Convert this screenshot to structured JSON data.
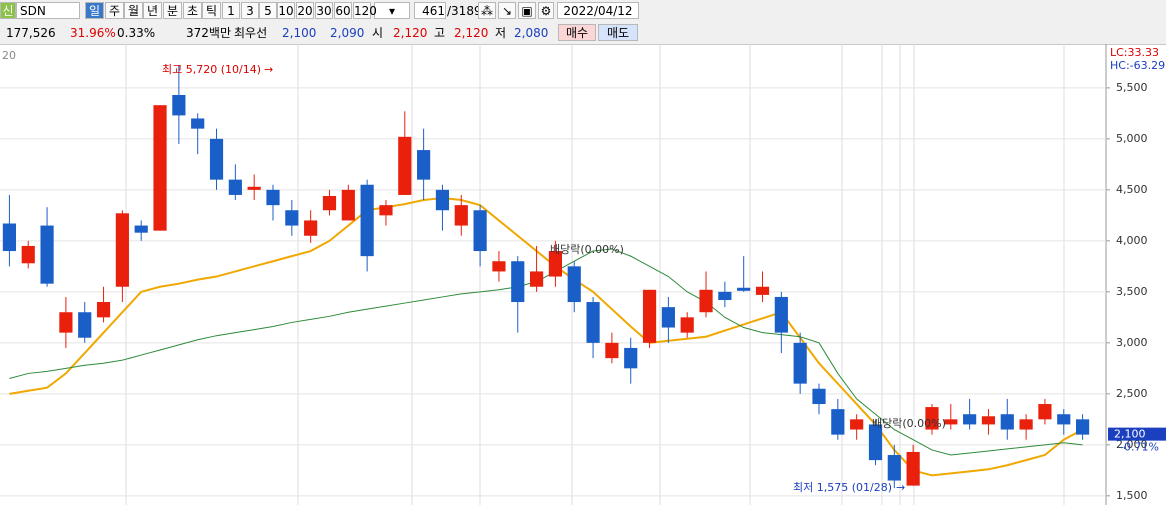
{
  "toolbar": {
    "badge": "신",
    "code": "SDN",
    "periods": [
      "일",
      "주",
      "월",
      "년",
      "분",
      "초",
      "틱"
    ],
    "minutes": [
      "1",
      "3",
      "5",
      "10",
      "20",
      "30",
      "60",
      "120"
    ],
    "count": "461",
    "total": "/3189",
    "date": "2022/04/12"
  },
  "quote": {
    "volume": "177,526",
    "change_rate": "31.96%",
    "turnover": "0.33%",
    "amount": "372백만",
    "best_label": "최우선",
    "best_ask": "2,100",
    "best_bid": "2,090",
    "open_label": "시",
    "open": "2,120",
    "high_label": "고",
    "high": "2,120",
    "low_label": "저",
    "low": "2,080",
    "buy": "매수",
    "sell": "매도"
  },
  "chart_data": {
    "type": "candlestick",
    "corner_label": "20",
    "categories": [
      null,
      null,
      null,
      null,
      null,
      null,
      null,
      null,
      null,
      null,
      null,
      null,
      null,
      null,
      null,
      null,
      null,
      null,
      null,
      null,
      null,
      null,
      null,
      null,
      null,
      null,
      null,
      null,
      null,
      null,
      null,
      null,
      null,
      null,
      null,
      null,
      null,
      null,
      null,
      null,
      null,
      null,
      null,
      null,
      null,
      null,
      null,
      null,
      null,
      null,
      null,
      null,
      null,
      null,
      null,
      null,
      null,
      null
    ],
    "open": [
      4170,
      3780,
      4150,
      3100,
      3300,
      3250,
      3550,
      4150,
      4100,
      5430,
      5200,
      5000,
      4600,
      4500,
      4500,
      4300,
      4050,
      4300,
      4200,
      4550,
      4250,
      4450,
      4890,
      4500,
      4150,
      4300,
      3700,
      3800,
      3550,
      3650,
      3750,
      3400,
      2850,
      2950,
      3000,
      3350,
      3100,
      3300,
      3500,
      3540,
      3470,
      3450,
      3000,
      2550,
      2350,
      2150,
      2200,
      1900,
      1600,
      2150,
      2200,
      2300,
      2200,
      2300,
      2150,
      2250,
      2300,
      2250
    ],
    "high": [
      4450,
      4000,
      4330,
      3450,
      3400,
      3550,
      4300,
      4200,
      5330,
      5720,
      5250,
      5100,
      4750,
      4650,
      4550,
      4400,
      4300,
      4500,
      4550,
      4600,
      4400,
      5270,
      5100,
      4550,
      4450,
      4350,
      3900,
      3850,
      3950,
      4000,
      3800,
      3450,
      3100,
      3050,
      3520,
      3450,
      3300,
      3700,
      3600,
      3850,
      3700,
      3500,
      3100,
      2600,
      2450,
      2300,
      2250,
      2000,
      2000,
      2400,
      2400,
      2450,
      2350,
      2450,
      2300,
      2450,
      2350,
      2300
    ],
    "low": [
      3750,
      3730,
      3550,
      2950,
      3000,
      3200,
      3400,
      4000,
      4100,
      4950,
      4850,
      4500,
      4400,
      4400,
      4200,
      4050,
      3980,
      4250,
      4200,
      3700,
      4150,
      4450,
      4400,
      4100,
      4050,
      3750,
      3600,
      3100,
      3500,
      3550,
      3300,
      2850,
      2800,
      2600,
      2950,
      3000,
      3050,
      3250,
      3350,
      3500,
      3400,
      2900,
      2500,
      2300,
      2050,
      2050,
      1800,
      1575,
      1600,
      2100,
      2150,
      2150,
      2100,
      2050,
      2050,
      2200,
      2100,
      2050
    ],
    "close": [
      3900,
      3950,
      3580,
      3300,
      3050,
      3400,
      4270,
      4080,
      5330,
      5230,
      5100,
      4600,
      4450,
      4530,
      4350,
      4150,
      4200,
      4440,
      4500,
      3850,
      4350,
      5020,
      4600,
      4300,
      4350,
      3900,
      3800,
      3400,
      3700,
      3900,
      3400,
      3000,
      3000,
      2750,
      3520,
      3150,
      3250,
      3520,
      3420,
      3510,
      3550,
      3100,
      2600,
      2400,
      2100,
      2250,
      1850,
      1650,
      1930,
      2370,
      2250,
      2200,
      2280,
      2150,
      2250,
      2400,
      2200,
      2100
    ],
    "up_color": "#e8200c",
    "down_color": "#1a5fc8",
    "moving_averages": [
      {
        "color": "#f0a800",
        "values": [
          2500,
          2530,
          2560,
          2700,
          2900,
          3100,
          3300,
          3500,
          3550,
          3580,
          3620,
          3650,
          3700,
          3750,
          3800,
          3850,
          3900,
          4000,
          4150,
          4300,
          4330,
          4360,
          4400,
          4420,
          4400,
          4350,
          4200,
          4050,
          3900,
          3750,
          3620,
          3500,
          3330,
          3160,
          3000,
          3020,
          3040,
          3060,
          3120,
          3180,
          3240,
          3300,
          3050,
          2800,
          2600,
          2400,
          2200,
          1950,
          1750,
          1700,
          1720,
          1740,
          1760,
          1800,
          1850,
          1900,
          2050,
          2150
        ]
      },
      {
        "color": "#2e8b3a",
        "values": [
          2650,
          2700,
          2720,
          2750,
          2780,
          2800,
          2830,
          2880,
          2930,
          2980,
          3030,
          3070,
          3100,
          3130,
          3160,
          3200,
          3230,
          3260,
          3300,
          3330,
          3360,
          3390,
          3420,
          3450,
          3480,
          3500,
          3520,
          3550,
          3600,
          3700,
          3800,
          3900,
          3920,
          3850,
          3750,
          3650,
          3500,
          3400,
          3250,
          3150,
          3100,
          3080,
          3060,
          3000,
          2700,
          2450,
          2300,
          2150,
          2050,
          1950,
          1900,
          1920,
          1940,
          1960,
          1980,
          2000,
          2020,
          2000
        ]
      }
    ],
    "ylim": [
      1410,
      5930
    ],
    "yticks": [
      {
        "value": 1500,
        "label": "1,500"
      },
      {
        "value": 2000,
        "label": "2,000"
      },
      {
        "value": 2500,
        "label": "2,500"
      },
      {
        "value": 3000,
        "label": "3,000"
      },
      {
        "value": 3500,
        "label": "3,500"
      },
      {
        "value": 4000,
        "label": "4,000"
      },
      {
        "value": 4500,
        "label": "4,500"
      },
      {
        "value": 5000,
        "label": "5,000"
      },
      {
        "value": 5500,
        "label": "5,500"
      }
    ],
    "grid": true,
    "annotations": {
      "max": "최고 5,720 (10/14)",
      "min": "최저 1,575 (01/28)",
      "ex_dividend_1": "배당락(0.00%)",
      "ex_dividend_2": "배당락(0.00%)",
      "lc": "LC:33.33",
      "hc": "HC:-63.29",
      "last_price": "2,100",
      "last_change": "-0.71%"
    }
  }
}
